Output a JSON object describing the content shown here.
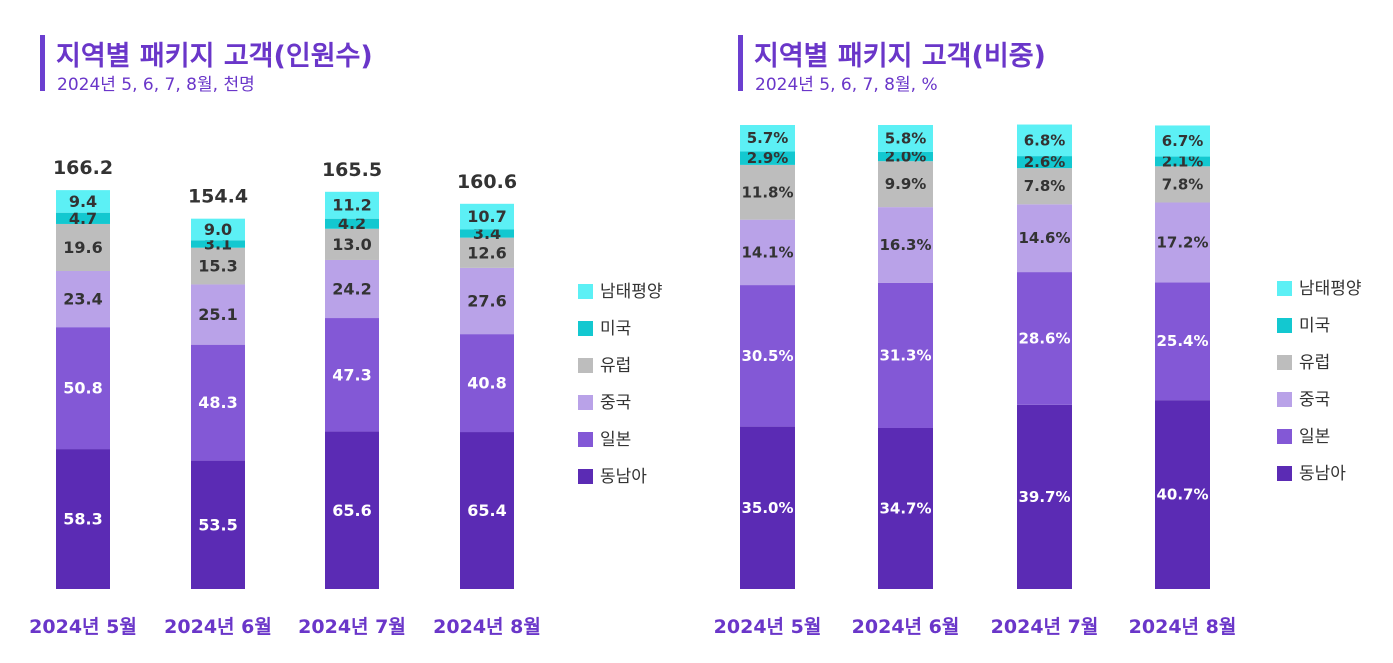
{
  "colors": {
    "동남아": "#5b2bb4",
    "일본": "#8358d6",
    "중국": "#b9a2e8",
    "유럽": "#bdbdbd",
    "미국": "#13c8d0",
    "남태평양": "#5cf0f5",
    "title": "#6a36c9",
    "axis_label": "#6a36c9"
  },
  "legend": [
    "남태평양",
    "미국",
    "유럽",
    "중국",
    "일본",
    "동남아"
  ],
  "left": {
    "title": "지역별 패키지 고객(인원수)",
    "subtitle": "2024년 5, 6, 7, 8월, 천명"
  },
  "right": {
    "title": "지역별 패키지 고객(비중)",
    "subtitle": "2024년 5, 6, 7, 8월, %"
  },
  "chart_data": [
    {
      "type": "bar",
      "stacked": true,
      "title": "지역별 패키지 고객(인원수)",
      "subtitle": "2024년 5, 6, 7, 8월, 천명",
      "categories": [
        "2024년 5월",
        "2024년 6월",
        "2024년 7월",
        "2024년 8월"
      ],
      "series": [
        {
          "name": "동남아",
          "values": [
            58.3,
            53.5,
            65.6,
            65.4
          ]
        },
        {
          "name": "일본",
          "values": [
            50.8,
            48.3,
            47.3,
            40.8
          ]
        },
        {
          "name": "중국",
          "values": [
            23.4,
            25.1,
            24.2,
            27.6
          ]
        },
        {
          "name": "유럽",
          "values": [
            19.6,
            15.3,
            13.0,
            12.6
          ]
        },
        {
          "name": "미국",
          "values": [
            4.7,
            3.1,
            4.2,
            3.4
          ]
        },
        {
          "name": "남태평양",
          "values": [
            9.4,
            9.0,
            11.2,
            10.7
          ]
        }
      ],
      "totals": [
        "166.2",
        "154.4",
        "165.5",
        "160.6"
      ],
      "labels": [
        [
          "58.3",
          "53.5",
          "65.6",
          "65.4"
        ],
        [
          "50.8",
          "48.3",
          "47.3",
          "40.8"
        ],
        [
          "23.4",
          "25.1",
          "24.2",
          "27.6"
        ],
        [
          "19.6",
          "15.3",
          "13.0",
          "12.6"
        ],
        [
          "4.7",
          "3.1",
          "4.2",
          "3.4"
        ],
        [
          "9.4",
          "9.0",
          "11.2",
          "10.7"
        ]
      ],
      "legend_position": "right"
    },
    {
      "type": "bar",
      "stacked": true,
      "title": "지역별 패키지 고객(비중)",
      "subtitle": "2024년 5, 6, 7, 8월, %",
      "categories": [
        "2024년 5월",
        "2024년 6월",
        "2024년 7월",
        "2024년 8월"
      ],
      "series": [
        {
          "name": "동남아",
          "values": [
            35.0,
            34.7,
            39.7,
            40.7
          ]
        },
        {
          "name": "일본",
          "values": [
            30.5,
            31.3,
            28.6,
            25.4
          ]
        },
        {
          "name": "중국",
          "values": [
            14.1,
            16.3,
            14.6,
            17.2
          ]
        },
        {
          "name": "유럽",
          "values": [
            11.8,
            9.9,
            7.8,
            7.8
          ]
        },
        {
          "name": "미국",
          "values": [
            2.9,
            2.0,
            2.6,
            2.1
          ]
        },
        {
          "name": "남태평양",
          "values": [
            5.7,
            5.8,
            6.8,
            6.7
          ]
        }
      ],
      "labels": [
        [
          "35.0%",
          "34.7%",
          "39.7%",
          "40.7%"
        ],
        [
          "30.5%",
          "31.3%",
          "28.6%",
          "25.4%"
        ],
        [
          "14.1%",
          "16.3%",
          "14.6%",
          "17.2%"
        ],
        [
          "11.8%",
          "9.9%",
          "7.8%",
          "7.8%"
        ],
        [
          "2.9%",
          "2.0%",
          "2.6%",
          "2.1%"
        ],
        [
          "5.7%",
          "5.8%",
          "6.8%",
          "6.7%"
        ]
      ],
      "ylim": [
        0,
        100
      ],
      "legend_position": "right"
    }
  ]
}
